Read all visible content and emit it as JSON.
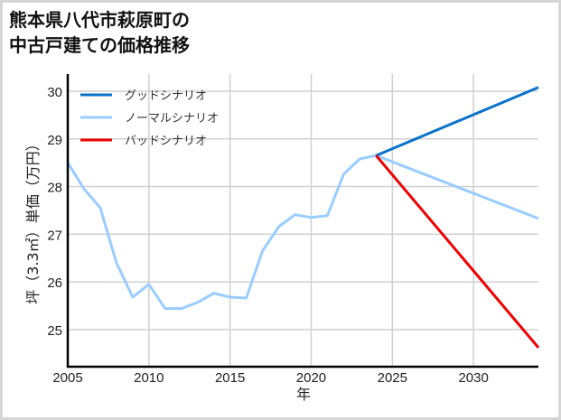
{
  "title_line1": "熊本県八代市萩原町の",
  "title_line2": "中古戸建ての価格推移",
  "chart_data": {
    "type": "line",
    "title": "熊本県八代市萩原町の中古戸建ての価格推移",
    "xlabel": "年",
    "ylabel": "坪（3.3㎡）単価（万円）",
    "xlim": [
      2005,
      2034
    ],
    "ylim": [
      24.22,
      30.36
    ],
    "xticks": [
      2005,
      2010,
      2015,
      2020,
      2025,
      2030
    ],
    "yticks": [
      25,
      26,
      27,
      28,
      29,
      30
    ],
    "grid": true,
    "legend_position": "upper left",
    "series": [
      {
        "name": "グッドシナリオ",
        "color": "#0a72c9",
        "x": [
          2024,
          2034
        ],
        "values": [
          28.65,
          30.08
        ]
      },
      {
        "name": "ノーマルシナリオ",
        "color": "#99ccff",
        "x": [
          2005,
          2006,
          2007,
          2008,
          2009,
          2010,
          2011,
          2012,
          2013,
          2014,
          2015,
          2016,
          2017,
          2018,
          2019,
          2020,
          2021,
          2022,
          2023,
          2024,
          2034
        ],
        "values": [
          28.5,
          27.95,
          27.56,
          26.4,
          25.68,
          25.95,
          25.44,
          25.44,
          25.57,
          25.76,
          25.68,
          25.66,
          26.65,
          27.16,
          27.41,
          27.35,
          27.39,
          28.26,
          28.58,
          28.65,
          27.33
        ]
      },
      {
        "name": "バッドシナリオ",
        "color": "#ee0000",
        "x": [
          2024,
          2034
        ],
        "values": [
          28.65,
          24.62
        ]
      }
    ]
  },
  "labels": {
    "xlabel": "年",
    "ylabel": "坪（3.3㎡）単価（万円）"
  }
}
